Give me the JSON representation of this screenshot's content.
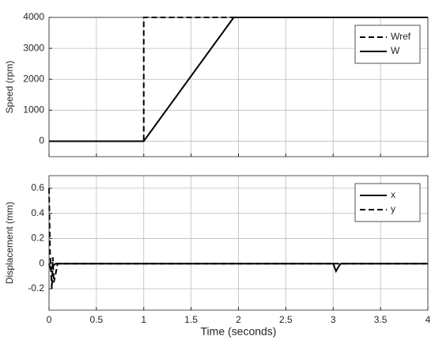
{
  "chart_data": [
    {
      "type": "line",
      "ylabel": "Speed (rpm)",
      "xlim": [
        0,
        4
      ],
      "xticks": [
        0,
        0.5,
        1,
        1.5,
        2,
        2.5,
        3,
        3.5,
        4
      ],
      "show_xtick_labels": false,
      "ylim": [
        -500,
        4000
      ],
      "yticks": [
        0,
        1000,
        2000,
        3000,
        4000
      ],
      "grid": true,
      "legend": "upper right",
      "series": [
        {
          "name": "Wref",
          "color": "#000000",
          "dashed": true,
          "x": [
            0,
            1,
            1,
            4
          ],
          "values": [
            0,
            0,
            4000,
            4000
          ]
        },
        {
          "name": "W",
          "color": "#000000",
          "dashed": false,
          "x": [
            0,
            1,
            1.95,
            4
          ],
          "values": [
            0,
            0,
            4000,
            4000
          ]
        }
      ]
    },
    {
      "type": "line",
      "ylabel": "Displacement (mm)",
      "xlabel": "Time (seconds)",
      "xlim": [
        0,
        4
      ],
      "xticks": [
        0,
        0.5,
        1,
        1.5,
        2,
        2.5,
        3,
        3.5,
        4
      ],
      "show_xtick_labels": true,
      "ylim": [
        -0.37,
        0.7
      ],
      "yticks": [
        -0.2,
        0,
        0.2,
        0.4,
        0.6
      ],
      "grid": true,
      "legend": "upper right",
      "series": [
        {
          "name": "x",
          "color": "#000000",
          "dashed": false,
          "x": [
            0,
            0.02,
            0.04,
            0.07,
            3.0,
            3.03,
            3.06,
            3.08,
            4
          ],
          "values": [
            0,
            -0.05,
            -0.02,
            0,
            0,
            -0.06,
            -0.02,
            0,
            0
          ]
        },
        {
          "name": "y",
          "color": "#000000",
          "dashed": true,
          "x": [
            0,
            0.01,
            0.03,
            0.04,
            0.05,
            0.07,
            0.09,
            4
          ],
          "values": [
            0.6,
            0.1,
            -0.2,
            0.05,
            -0.15,
            -0.08,
            0,
            0
          ]
        }
      ]
    }
  ]
}
